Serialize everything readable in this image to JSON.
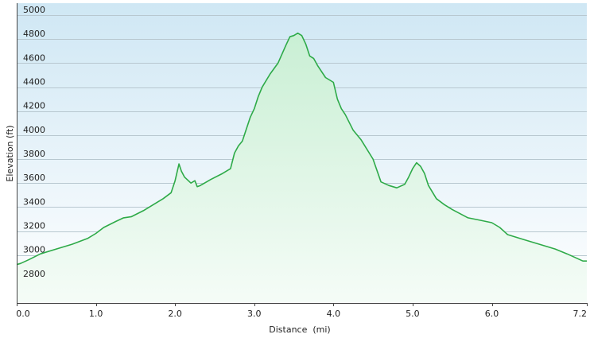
{
  "chart_data": {
    "type": "area",
    "title": "",
    "xlabel": "Distance  (mi)",
    "ylabel": "Elevation (ft)",
    "xlim": [
      0,
      7.2
    ],
    "ylim": [
      2600,
      5100
    ],
    "x_ticks": [
      "0.0",
      "1.0",
      "2.0",
      "3.0",
      "4.0",
      "5.0",
      "6.0",
      "7.2"
    ],
    "x_tick_values": [
      0,
      1,
      2,
      3,
      4,
      5,
      6,
      7.2
    ],
    "y_ticks": [
      "2800",
      "3000",
      "3200",
      "3400",
      "3600",
      "3800",
      "4000",
      "4200",
      "4400",
      "4600",
      "4800",
      "5000"
    ],
    "y_tick_values": [
      2800,
      3000,
      3200,
      3400,
      3600,
      3800,
      4000,
      4200,
      4400,
      4600,
      4800,
      5000
    ],
    "grid": true,
    "colors": {
      "line": "#2eaa48",
      "fill_top": "#c9efd4",
      "fill_bottom": "#f5fcf7",
      "bg_top": "#cfe7f4",
      "bg_bottom": "#ffffff"
    },
    "series": [
      {
        "x": [
          0.0,
          0.05,
          0.15,
          0.3,
          0.5,
          0.7,
          0.9,
          1.0,
          1.1,
          1.25,
          1.35,
          1.45,
          1.6,
          1.75,
          1.85,
          1.95,
          2.0,
          2.05,
          2.08,
          2.12,
          2.2,
          2.25,
          2.28,
          2.32,
          2.45,
          2.6,
          2.7,
          2.75,
          2.8,
          2.85,
          2.9,
          2.95,
          3.0,
          3.05,
          3.1,
          3.2,
          3.3,
          3.4,
          3.45,
          3.5,
          3.55,
          3.6,
          3.65,
          3.7,
          3.75,
          3.8,
          3.9,
          4.0,
          4.05,
          4.1,
          4.15,
          4.25,
          4.35,
          4.5,
          4.6,
          4.7,
          4.8,
          4.9,
          4.95,
          5.0,
          5.05,
          5.1,
          5.15,
          5.2,
          5.3,
          5.4,
          5.5,
          5.7,
          5.85,
          6.0,
          6.1,
          6.2,
          6.4,
          6.6,
          6.8,
          6.95,
          7.05,
          7.15,
          7.2
        ],
        "y": [
          2920,
          2930,
          2960,
          3010,
          3050,
          3090,
          3140,
          3180,
          3230,
          3280,
          3310,
          3320,
          3370,
          3430,
          3470,
          3520,
          3620,
          3760,
          3700,
          3650,
          3600,
          3620,
          3570,
          3580,
          3630,
          3680,
          3720,
          3850,
          3910,
          3950,
          4050,
          4150,
          4220,
          4320,
          4400,
          4510,
          4600,
          4750,
          4820,
          4830,
          4850,
          4830,
          4760,
          4660,
          4640,
          4580,
          4480,
          4440,
          4300,
          4220,
          4170,
          4040,
          3960,
          3800,
          3610,
          3580,
          3560,
          3590,
          3650,
          3720,
          3770,
          3740,
          3680,
          3580,
          3470,
          3420,
          3380,
          3310,
          3290,
          3270,
          3230,
          3170,
          3130,
          3090,
          3050,
          3010,
          2980,
          2950,
          2950
        ]
      }
    ]
  }
}
